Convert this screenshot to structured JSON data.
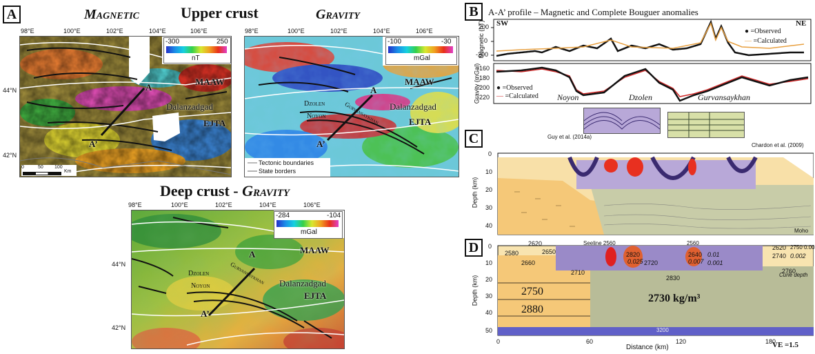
{
  "panels": {
    "a": "A",
    "b": "B",
    "c": "C",
    "d": "D"
  },
  "magnetic": {
    "title": "Magnetic",
    "lon_ticks": [
      "98°E",
      "100°E",
      "102°E",
      "104°E",
      "106°E"
    ],
    "lat_ticks": [
      "44°N",
      "42°N"
    ],
    "colorbar": {
      "min": "-300",
      "max": "250",
      "unit": "nT"
    },
    "labels": {
      "a": "A",
      "a_prime": "A’",
      "maaw": "MAAW",
      "ejta": "EJTA",
      "city": "Dalanzadgad"
    },
    "scale": {
      "t0": "0",
      "t50": "50",
      "t100": "100",
      "unit": "Km"
    }
  },
  "upper_crust": "Upper crust",
  "gravity_upper": {
    "title": "Gravity",
    "lon_ticks": [
      "98°E",
      "100°E",
      "102°E",
      "104°E",
      "106°E"
    ],
    "colorbar": {
      "min": "-100",
      "max": "-30",
      "unit": "mGal"
    },
    "labels": {
      "a": "A",
      "a_prime": "A’",
      "maaw": "MAAW",
      "ejta": "EJTA",
      "city": "Dalanzadgad",
      "dzolen": "Dzolen",
      "noyon": "Noyon",
      "gurvan": "Gurvansaykhan"
    },
    "legend": {
      "tectonic": "Tectonic boundaries",
      "state": "State borders"
    }
  },
  "deep_crust": {
    "title": "Deep crust - ",
    "title_gravity": "Gravity",
    "lon_ticks": [
      "98°E",
      "100°E",
      "102°E",
      "104°E",
      "106°E"
    ],
    "lat_ticks": [
      "44°N",
      "42°N"
    ],
    "colorbar": {
      "min": "-284",
      "max": "-104",
      "unit": "mGal"
    },
    "labels": {
      "a": "A",
      "a_prime": "A’",
      "maaw": "MAAW",
      "ejta": "EJTA",
      "city": "Dalanzadgad",
      "dzolen": "Dzolen",
      "noyon": "Noyon",
      "gurvan": "Gurvansaykhan"
    }
  },
  "profile": {
    "title": "A-A’ profile – Magnetic and Complete Bouguer anomalies",
    "sw": "SW",
    "ne": "NE",
    "magnetic_ylabel": "Magnetic (nT)",
    "magnetic_yticks": [
      "200",
      "0",
      "-200"
    ],
    "gravity_ylabel": "Gravity (mGal)",
    "gravity_yticks": [
      "-160",
      "-180",
      "-200",
      "-220"
    ],
    "legend_observed": "=Observed",
    "legend_calculated": "=Calculated",
    "names": {
      "noyon": "Noyon",
      "dzolen": "Dzolen",
      "gurvan": "Gurvansaykhan"
    }
  },
  "section_c": {
    "ref_guy": "Guy et al. (2014a)",
    "ref_chardon": "Chardon et al. (2009)",
    "ylabel": "Depth (km)",
    "yticks": [
      "0",
      "10",
      "20",
      "30",
      "40"
    ],
    "moho": "Moho"
  },
  "section_d": {
    "ylabel": "Depth (km)",
    "yticks": [
      "0",
      "10",
      "20",
      "30",
      "40",
      "50"
    ],
    "xticks": [
      "0",
      "60",
      "120",
      "180"
    ],
    "xlabel": "Distance (km)",
    "ve": "VE =1.5",
    "densities": [
      "2620",
      "2650",
      "2580",
      "2660",
      "2710",
      "2720",
      "2820",
      "2830",
      "2640",
      "2620",
      "2740",
      "2760",
      "2750",
      "2880",
      "3200"
    ],
    "susc": [
      "0.025",
      "0.007",
      "0.01",
      "0.001",
      "0.002"
    ],
    "main_density": "2730 kg/m³",
    "curie": "Curie depth",
    "seeline": "Seeline 2560",
    "v2560": "2560",
    "v2750": "2750 0.001"
  }
}
